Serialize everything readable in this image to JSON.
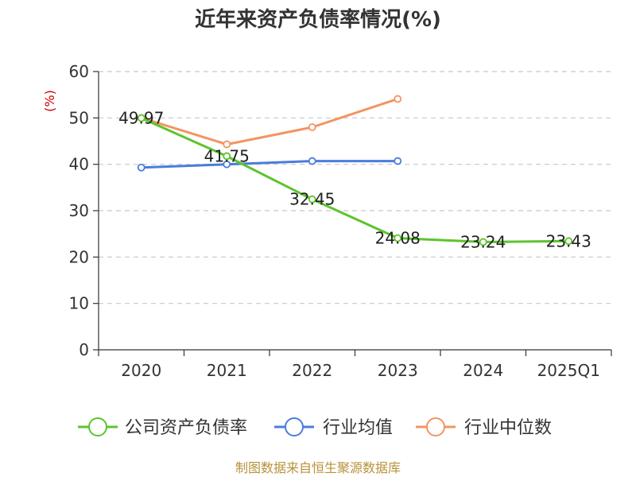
{
  "chart_data": {
    "type": "line",
    "title": "近年来资产负债率情况(%)",
    "ylabel": "(%)",
    "xlabel": "",
    "categories": [
      "2020",
      "2021",
      "2022",
      "2023",
      "2024",
      "2025Q1"
    ],
    "ylim": [
      0,
      60
    ],
    "yticks": [
      0,
      10,
      20,
      30,
      40,
      50,
      60
    ],
    "grid": true,
    "legend_position": "bottom",
    "series": [
      {
        "name": "公司资产负债率",
        "color": "#5cc42d",
        "values": [
          49.97,
          41.75,
          32.45,
          24.08,
          23.24,
          23.43
        ],
        "labels": [
          "49.97",
          "41.75",
          "32.45",
          "24.08",
          "23.24",
          "23.43"
        ]
      },
      {
        "name": "行业均值",
        "color": "#4a7ddb",
        "values": [
          39.3,
          40.0,
          40.7,
          40.7,
          null,
          null
        ]
      },
      {
        "name": "行业中位数",
        "color": "#f39461",
        "values": [
          50.0,
          44.3,
          48.0,
          54.1,
          null,
          null
        ]
      }
    ],
    "source": "制图数据来自恒生聚源数据库"
  }
}
